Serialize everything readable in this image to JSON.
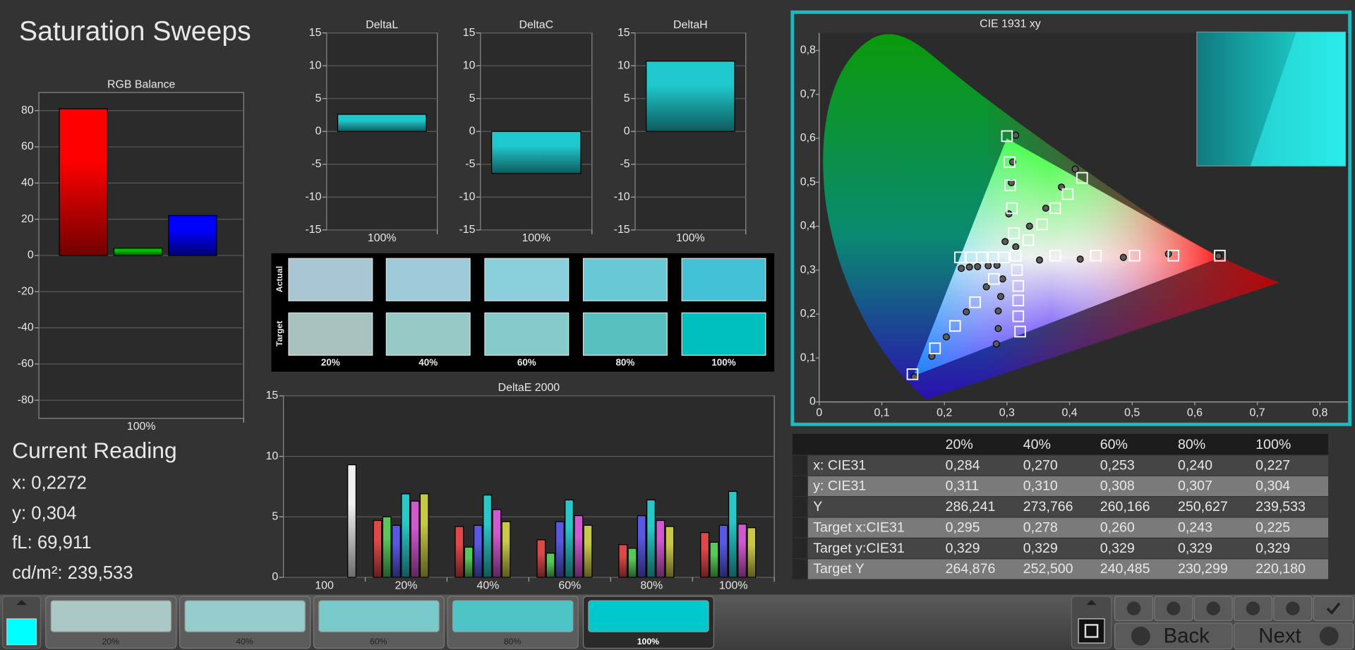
{
  "title": "Saturation Sweeps",
  "chart_data": [
    {
      "type": "bar",
      "title": "RGB Balance",
      "categories": [
        "100%"
      ],
      "series": [
        {
          "color": "#ff0000",
          "values": [
            81
          ]
        },
        {
          "color": "#00c000",
          "values": [
            4
          ]
        },
        {
          "color": "#0000ff",
          "values": [
            22
          ]
        }
      ],
      "ylim": [
        -90,
        90
      ],
      "yticks": [
        -80,
        -60,
        -40,
        -20,
        0,
        20,
        40,
        60,
        80
      ],
      "grid": true
    },
    {
      "type": "bar",
      "title": "DeltaL",
      "categories": [
        "100%"
      ],
      "values": [
        2.6
      ],
      "color": "#1fc8cc",
      "ylim": [
        -15,
        15
      ],
      "yticks": [
        -15,
        -10,
        -5,
        0,
        5,
        10,
        15
      ],
      "grid": true
    },
    {
      "type": "bar",
      "title": "DeltaC",
      "categories": [
        "100%"
      ],
      "values": [
        -6.4
      ],
      "color": "#1fc8cc",
      "ylim": [
        -15,
        15
      ],
      "yticks": [
        -15,
        -10,
        -5,
        0,
        5,
        10,
        15
      ],
      "grid": true
    },
    {
      "type": "bar",
      "title": "DeltaH",
      "categories": [
        "100%"
      ],
      "values": [
        10.7
      ],
      "color": "#1fc8cc",
      "ylim": [
        -15,
        15
      ],
      "yticks": [
        -15,
        -10,
        -5,
        0,
        5,
        10,
        15
      ],
      "grid": true
    },
    {
      "type": "bar",
      "title": "DeltaE 2000",
      "categories": [
        "100",
        "20%",
        "40%",
        "60%",
        "80%",
        "100%"
      ],
      "series": [
        {
          "color": "#e04848",
          "values": [
            null,
            4.7,
            4.2,
            3.1,
            2.7,
            3.7
          ]
        },
        {
          "color": "#58c858",
          "values": [
            null,
            5.0,
            2.5,
            2.0,
            2.4,
            2.9
          ]
        },
        {
          "color": "#5858e0",
          "values": [
            null,
            4.3,
            4.3,
            4.6,
            5.1,
            4.3
          ]
        },
        {
          "color": "#28c8c8",
          "values": [
            null,
            6.9,
            6.8,
            6.4,
            6.4,
            7.1
          ]
        },
        {
          "color": "#d058d0",
          "values": [
            null,
            6.3,
            5.6,
            5.1,
            4.7,
            4.4
          ]
        },
        {
          "color": "#c8c848",
          "values": [
            null,
            6.9,
            4.6,
            4.3,
            4.2,
            4.1
          ]
        },
        {
          "color": "#f0f0f0",
          "values": [
            9.3,
            null,
            null,
            null,
            null,
            null
          ]
        }
      ],
      "ylim": [
        0,
        15
      ],
      "yticks": [
        0,
        5,
        10,
        15
      ],
      "grid": true
    },
    {
      "type": "scatter",
      "title": "CIE 1931 xy",
      "xlim": [
        0,
        0.845
      ],
      "ylim": [
        0,
        0.84
      ],
      "xticks": [
        0,
        {
          "value": 0.1,
          "label": "0,1"
        },
        {
          "value": 0.2,
          "label": "0,2"
        },
        {
          "value": 0.3,
          "label": "0,3"
        },
        {
          "value": 0.4,
          "label": "0,4"
        },
        {
          "value": 0.5,
          "label": "0,5"
        },
        {
          "value": 0.6,
          "label": "0,6"
        },
        {
          "value": 0.7,
          "label": "0,7"
        },
        {
          "value": 0.8,
          "label": "0,8"
        }
      ],
      "yticks": [
        0,
        {
          "value": 0.1,
          "label": "0,1"
        },
        {
          "value": 0.2,
          "label": "0,2"
        },
        {
          "value": 0.3,
          "label": "0,3"
        },
        {
          "value": 0.4,
          "label": "0,4"
        },
        {
          "value": 0.5,
          "label": "0,5"
        },
        {
          "value": 0.6,
          "label": "0,6"
        },
        {
          "value": 0.7,
          "label": "0,7"
        },
        {
          "value": 0.8,
          "label": "0,8"
        }
      ],
      "series": [
        {
          "marker": "square",
          "color": "#ffffff",
          "x": [
            0.314,
            0.377,
            0.442,
            0.504,
            0.566,
            0.64,
            0.311,
            0.308,
            0.305,
            0.304,
            0.3,
            0.279,
            0.249,
            0.217,
            0.185,
            0.149,
            0.295,
            0.278,
            0.26,
            0.243,
            0.225,
            0.316,
            0.318,
            0.318,
            0.318,
            0.321,
            0.334,
            0.356,
            0.377,
            0.397,
            0.42
          ],
          "y": [
            0.333,
            0.333,
            0.333,
            0.333,
            0.333,
            0.333,
            0.384,
            0.441,
            0.493,
            0.546,
            0.605,
            0.28,
            0.227,
            0.173,
            0.122,
            0.063,
            0.329,
            0.329,
            0.329,
            0.329,
            0.329,
            0.3,
            0.264,
            0.231,
            0.195,
            0.16,
            0.368,
            0.404,
            0.441,
            0.473,
            0.51
          ]
        },
        {
          "marker": "circle",
          "color": "#5a5a5a",
          "x": [
            0.352,
            0.417,
            0.486,
            0.558,
            0.638,
            0.297,
            0.303,
            0.307,
            0.309,
            0.314,
            0.267,
            0.235,
            0.203,
            0.18,
            0.152,
            0.284,
            0.27,
            0.253,
            0.24,
            0.227,
            0.293,
            0.29,
            0.286,
            0.286,
            0.283,
            0.314,
            0.336,
            0.362,
            0.387,
            0.409
          ],
          "y": [
            0.323,
            0.325,
            0.329,
            0.337,
            0.332,
            0.365,
            0.428,
            0.499,
            0.546,
            0.607,
            0.262,
            0.205,
            0.148,
            0.104,
            0.057,
            0.311,
            0.31,
            0.308,
            0.307,
            0.304,
            0.28,
            0.24,
            0.207,
            0.167,
            0.132,
            0.353,
            0.4,
            0.441,
            0.489,
            0.53
          ]
        }
      ]
    }
  ],
  "swatches": {
    "row_labels": [
      "Actual",
      "Target"
    ],
    "columns": [
      "20%",
      "40%",
      "60%",
      "80%",
      "100%"
    ],
    "actual": [
      "#a9c6d4",
      "#9dcad8",
      "#8acfdc",
      "#67c8d6",
      "#43c2d5"
    ],
    "target": [
      "#a8c2c0",
      "#97c9c6",
      "#86cbcb",
      "#58c1bf",
      "#00bfbf"
    ]
  },
  "current_reading": {
    "title": "Current Reading",
    "lines": [
      "x: 0,2272",
      "y: 0,304",
      "fL: 69,911",
      "cd/m²: 239,533"
    ]
  },
  "table": {
    "header": [
      "20%",
      "40%",
      "60%",
      "80%",
      "100%"
    ],
    "rows": [
      [
        "x: CIE31",
        "0,284",
        "0,270",
        "0,253",
        "0,240",
        "0,227"
      ],
      [
        "y: CIE31",
        "0,311",
        "0,310",
        "0,308",
        "0,307",
        "0,304"
      ],
      [
        "Y",
        "286,241",
        "273,766",
        "260,166",
        "250,627",
        "239,533"
      ],
      [
        "Target x:CIE31",
        "0,295",
        "0,278",
        "0,260",
        "0,243",
        "0,225"
      ],
      [
        "Target y:CIE31",
        "0,329",
        "0,329",
        "0,329",
        "0,329",
        "0,329"
      ],
      [
        "Target Y",
        "264,876",
        "252,500",
        "240,485",
        "230,299",
        "220,180"
      ]
    ]
  },
  "toolbar": {
    "current_color": "#00ffff",
    "swatches": [
      {
        "label": "20%",
        "color": "#a9c8c6"
      },
      {
        "label": "40%",
        "color": "#97cccc"
      },
      {
        "label": "60%",
        "color": "#7ac9cb"
      },
      {
        "label": "80%",
        "color": "#4fc4c6"
      },
      {
        "label": "100%",
        "color": "#00c8cc"
      }
    ],
    "back": "Back",
    "next": "Next"
  }
}
